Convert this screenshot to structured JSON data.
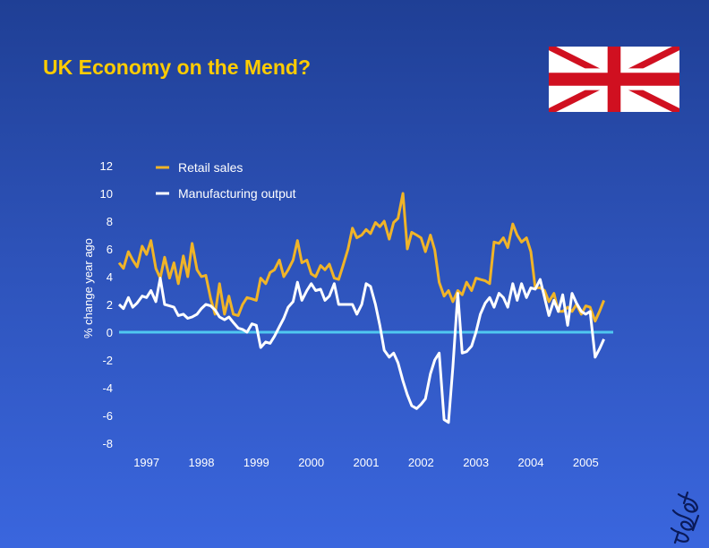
{
  "page": {
    "title": "UK Economy on the Mend?"
  },
  "colors": {
    "background_top": "#1f3f95",
    "background_bottom": "#3a66de",
    "title": "#ffcc00",
    "retail": "#f0b428",
    "manufacturing": "#ffffff",
    "zero_line": "#4fc8f0",
    "axis_text": "#ffffff"
  },
  "icons": {
    "flag": "union-jack-flag-icon",
    "logo": "firm-logo-icon"
  },
  "chart_data": {
    "type": "line",
    "title": "",
    "ylabel": "% change year ago",
    "xlabel": "",
    "ylim": [
      -8,
      12
    ],
    "xlim": [
      1997,
      2006
    ],
    "yticks": [
      12,
      10,
      8,
      6,
      4,
      2,
      0,
      -2,
      -4,
      -6,
      -8
    ],
    "xtick_labels": [
      "1997",
      "1998",
      "1999",
      "2000",
      "2001",
      "2002",
      "2003",
      "2004",
      "2005"
    ],
    "grid": false,
    "legend_position": "top-left",
    "series": [
      {
        "name": "Retail sales",
        "color": "#f0b428",
        "x": [
          1997.0,
          1997.08,
          1997.17,
          1997.25,
          1997.33,
          1997.42,
          1997.5,
          1997.58,
          1997.67,
          1997.75,
          1997.83,
          1997.92,
          1998.0,
          1998.08,
          1998.17,
          1998.25,
          1998.33,
          1998.42,
          1998.5,
          1998.58,
          1998.67,
          1998.75,
          1998.83,
          1998.92,
          1999.0,
          1999.08,
          1999.17,
          1999.25,
          1999.33,
          1999.42,
          1999.5,
          1999.58,
          1999.67,
          1999.75,
          1999.83,
          1999.92,
          2000.0,
          2000.08,
          2000.17,
          2000.25,
          2000.33,
          2000.42,
          2000.5,
          2000.58,
          2000.67,
          2000.75,
          2000.83,
          2000.92,
          2001.0,
          2001.08,
          2001.17,
          2001.25,
          2001.33,
          2001.42,
          2001.5,
          2001.58,
          2001.67,
          2001.75,
          2001.83,
          2001.92,
          2002.0,
          2002.08,
          2002.17,
          2002.25,
          2002.33,
          2002.42,
          2002.5,
          2002.58,
          2002.67,
          2002.75,
          2002.83,
          2002.92,
          2003.0,
          2003.08,
          2003.17,
          2003.25,
          2003.33,
          2003.42,
          2003.5,
          2003.58,
          2003.67,
          2003.75,
          2003.83,
          2003.92,
          2004.0,
          2004.08,
          2004.17,
          2004.25,
          2004.33,
          2004.42,
          2004.5,
          2004.58,
          2004.67,
          2004.75,
          2004.83,
          2004.92,
          2005.0,
          2005.08,
          2005.17,
          2005.25,
          2005.33,
          2005.42,
          2005.5,
          2005.58,
          2005.67,
          2005.75,
          2005.83
        ],
        "values": [
          5.0,
          4.6,
          5.8,
          5.2,
          4.7,
          6.2,
          5.6,
          6.6,
          4.6,
          3.9,
          5.4,
          3.9,
          5.0,
          3.5,
          5.5,
          4.0,
          6.4,
          4.5,
          4.0,
          4.1,
          2.4,
          1.3,
          3.5,
          1.3,
          2.6,
          1.3,
          1.2,
          2.0,
          2.5,
          2.4,
          2.3,
          3.9,
          3.5,
          4.3,
          4.5,
          5.2,
          4.0,
          4.5,
          5.2,
          6.6,
          5.0,
          5.2,
          4.2,
          4.0,
          4.8,
          4.5,
          4.9,
          3.9,
          3.8,
          4.8,
          6.0,
          7.5,
          6.8,
          7.0,
          7.4,
          7.1,
          7.9,
          7.6,
          8.0,
          6.7,
          7.9,
          8.2,
          10.0,
          6.0,
          7.2,
          7.0,
          6.8,
          5.8,
          7.0,
          5.9,
          3.6,
          2.6,
          3.0,
          2.2,
          3.0,
          2.7,
          3.6,
          3.0,
          3.9,
          3.8,
          3.7,
          3.5,
          6.5,
          6.4,
          6.8,
          6.1,
          7.8,
          7.0,
          6.5,
          6.8,
          5.8,
          3.2,
          3.2,
          3.0,
          2.2,
          2.8,
          1.5,
          1.5,
          1.8,
          1.5,
          2.0,
          1.3,
          1.9,
          1.8,
          0.8,
          1.5,
          2.3
        ]
      },
      {
        "name": "Manufacturing output",
        "color": "#ffffff",
        "x": [
          1997.0,
          1997.08,
          1997.17,
          1997.25,
          1997.33,
          1997.42,
          1997.5,
          1997.58,
          1997.67,
          1997.75,
          1997.83,
          1997.92,
          1998.0,
          1998.08,
          1998.17,
          1998.25,
          1998.33,
          1998.42,
          1998.5,
          1998.58,
          1998.67,
          1998.75,
          1998.83,
          1998.92,
          1999.0,
          1999.08,
          1999.17,
          1999.25,
          1999.33,
          1999.42,
          1999.5,
          1999.58,
          1999.67,
          1999.75,
          1999.83,
          1999.92,
          2000.0,
          2000.08,
          2000.17,
          2000.25,
          2000.33,
          2000.42,
          2000.5,
          2000.58,
          2000.67,
          2000.75,
          2000.83,
          2000.92,
          2001.0,
          2001.08,
          2001.17,
          2001.25,
          2001.33,
          2001.42,
          2001.5,
          2001.58,
          2001.67,
          2001.75,
          2001.83,
          2001.92,
          2002.0,
          2002.08,
          2002.17,
          2002.25,
          2002.33,
          2002.42,
          2002.5,
          2002.58,
          2002.67,
          2002.75,
          2002.83,
          2002.92,
          2003.0,
          2003.08,
          2003.17,
          2003.25,
          2003.33,
          2003.42,
          2003.5,
          2003.58,
          2003.67,
          2003.75,
          2003.83,
          2003.92,
          2004.0,
          2004.08,
          2004.17,
          2004.25,
          2004.33,
          2004.42,
          2004.5,
          2004.58,
          2004.67,
          2004.75,
          2004.83,
          2004.92,
          2005.0,
          2005.08,
          2005.17,
          2005.25,
          2005.33,
          2005.42,
          2005.5,
          2005.58,
          2005.67,
          2005.75,
          2005.83
        ],
        "values": [
          2.0,
          1.7,
          2.5,
          1.8,
          2.1,
          2.6,
          2.5,
          3.0,
          2.2,
          3.9,
          2.0,
          1.9,
          1.8,
          1.2,
          1.3,
          1.0,
          1.1,
          1.3,
          1.7,
          2.0,
          1.9,
          1.6,
          1.1,
          0.9,
          1.1,
          0.7,
          0.3,
          0.2,
          0.0,
          0.6,
          0.5,
          -1.1,
          -0.7,
          -0.8,
          -0.3,
          0.4,
          1.0,
          1.8,
          2.2,
          3.6,
          2.3,
          3.0,
          3.5,
          3.0,
          3.1,
          2.3,
          2.6,
          3.5,
          2.0,
          2.0,
          2.0,
          2.0,
          1.3,
          2.0,
          3.5,
          3.3,
          2.0,
          0.5,
          -1.3,
          -1.8,
          -1.5,
          -2.2,
          -3.5,
          -4.5,
          -5.3,
          -5.5,
          -5.2,
          -4.8,
          -3.0,
          -2.0,
          -1.5,
          -6.3,
          -6.5,
          -2.5,
          2.8,
          -1.5,
          -1.4,
          -1.0,
          0.0,
          1.3,
          2.1,
          2.5,
          1.8,
          2.8,
          2.5,
          1.8,
          3.5,
          2.3,
          3.5,
          2.5,
          3.2,
          3.1,
          3.8,
          2.5,
          1.2,
          2.3,
          1.5,
          2.7,
          0.5,
          2.8,
          2.1,
          1.5,
          1.3,
          1.5,
          -1.8,
          -1.2,
          -0.5
        ]
      }
    ]
  }
}
